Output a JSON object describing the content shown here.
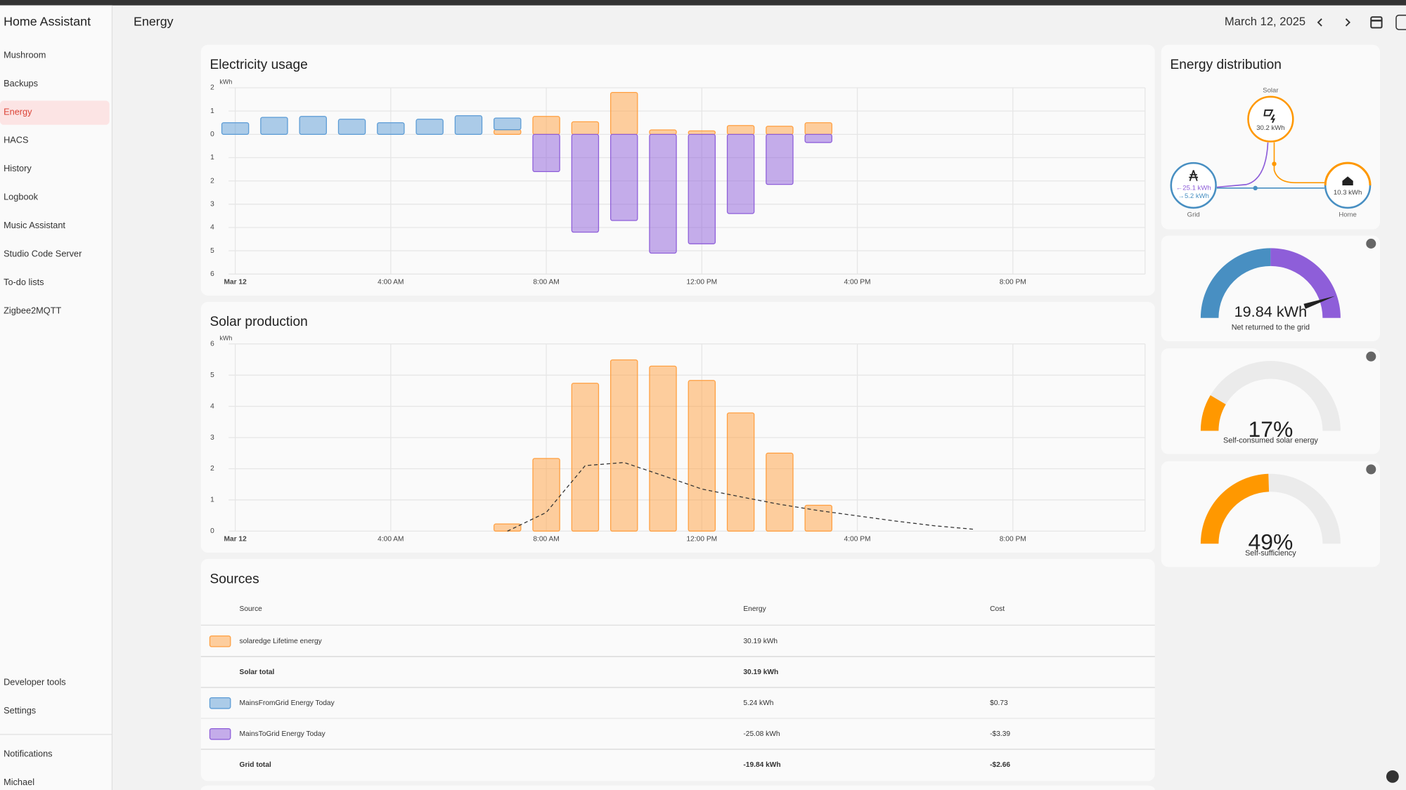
{
  "sidebar": {
    "title": "Home Assistant",
    "items": [
      "Mushroom",
      "Backups",
      "Energy",
      "HACS",
      "History",
      "Logbook",
      "Music Assistant",
      "Studio Code Server",
      "To-do lists",
      "Zigbee2MQTT"
    ],
    "bottom": [
      "Developer tools",
      "Settings"
    ],
    "footer": [
      "Notifications",
      "Michael"
    ]
  },
  "header": {
    "title": "Energy",
    "date": "March 12, 2025"
  },
  "electricity_usage": {
    "type": "bar",
    "title": "Electricity usage",
    "unit": "kWh",
    "x": [
      0,
      1,
      2,
      3,
      4,
      5,
      6,
      7,
      8,
      9,
      10,
      11,
      12,
      13,
      14,
      15
    ],
    "series": [
      {
        "color": "#ff9f40",
        "values": [
          null,
          null,
          null,
          null,
          null,
          null,
          null,
          0.2,
          0.77,
          0.54,
          1.8,
          0.19,
          0.15,
          0.38,
          0.35,
          0.5
        ]
      },
      {
        "color": "#5b9bd5",
        "values": [
          0.5,
          0.73,
          0.77,
          0.65,
          0.5,
          0.65,
          0.8,
          0.5,
          null,
          null,
          null,
          null,
          null,
          null,
          null,
          null
        ]
      },
      {
        "color": "#8e5ed9",
        "values": [
          null,
          null,
          null,
          null,
          null,
          null,
          null,
          null,
          -1.6,
          -4.2,
          -3.7,
          -5.1,
          -4.7,
          -3.4,
          -2.15,
          -0.35
        ]
      }
    ],
    "xlim": [
      -0.4,
      23.4
    ],
    "xticks": [
      {
        "value": 0,
        "label": "Mar 12"
      },
      {
        "value": 4,
        "label": "4:00 AM"
      },
      {
        "value": 8,
        "label": "8:00 AM"
      },
      {
        "value": 12,
        "label": "12:00 PM"
      },
      {
        "value": 16,
        "label": "4:00 PM"
      },
      {
        "value": 20,
        "label": "8:00 PM"
      }
    ],
    "ylim": [
      -6,
      2
    ],
    "yticks": [
      {
        "value": -6,
        "label": "6"
      },
      {
        "value": -5,
        "label": "5"
      },
      {
        "value": -4,
        "label": "4"
      },
      {
        "value": -3,
        "label": "3"
      },
      {
        "value": -2,
        "label": "2"
      },
      {
        "value": -1,
        "label": "1"
      },
      0,
      1,
      2
    ],
    "grid": true
  },
  "solar_production": {
    "type": "bar",
    "title": "Solar production",
    "unit": "kWh",
    "x": [
      7,
      8,
      9,
      10,
      11,
      12,
      13,
      14,
      15
    ],
    "series": [
      {
        "color": "#ff9f40",
        "values": [
          0.23,
          2.33,
          4.74,
          5.49,
          5.29,
          4.83,
          3.79,
          2.5,
          0.83
        ]
      }
    ],
    "forecast": {
      "color": "#333333",
      "x": [
        7,
        8,
        9,
        10,
        11,
        12,
        13,
        14,
        15,
        16,
        17,
        18,
        19
      ],
      "values": [
        0,
        0.6,
        2.1,
        2.2,
        1.78,
        1.35,
        1.1,
        0.86,
        0.66,
        0.49,
        0.32,
        0.17,
        0.06
      ]
    },
    "xlim": [
      -0.4,
      23.4
    ],
    "xticks": [
      {
        "value": 0,
        "label": "Mar 12"
      },
      {
        "value": 4,
        "label": "4:00 AM"
      },
      {
        "value": 8,
        "label": "8:00 AM"
      },
      {
        "value": 12,
        "label": "12:00 PM"
      },
      {
        "value": 16,
        "label": "4:00 PM"
      },
      {
        "value": 20,
        "label": "8:00 PM"
      }
    ],
    "ylim": [
      0,
      6
    ],
    "yticks": [
      0,
      1,
      2,
      3,
      4,
      5,
      6
    ],
    "grid": true
  },
  "distribution": {
    "title": "Energy distribution",
    "solar": {
      "label": "Solar",
      "value": "30.2 kWh"
    },
    "grid": {
      "label": "Grid",
      "to": {
        "value": 25.1,
        "label": "←25.1 kWh"
      },
      "from": {
        "value": 5.2,
        "label": "→5.2 kWh"
      }
    },
    "home": {
      "label": "Home",
      "value": "10.3 kWh"
    }
  },
  "gauges": [
    {
      "value": 19.84,
      "label": "19.84 kWh",
      "caption": "Net returned to the grid"
    },
    {
      "value": 17,
      "label": "17%",
      "caption": "Self-consumed solar energy",
      "color": "#ff9800"
    },
    {
      "value": 49,
      "label": "49%",
      "caption": "Self-sufficiency",
      "color": "#ff9800"
    }
  ],
  "sources": {
    "title": "Sources",
    "columns": [
      "Source",
      "Energy",
      "Cost"
    ],
    "rows": [
      {
        "color": "#ff9f40",
        "cells": [
          "solaredge Lifetime energy",
          "30.19 kWh",
          null
        ]
      },
      {
        "color": null,
        "total": true,
        "cells": [
          "Solar total",
          "30.19 kWh",
          null
        ]
      },
      {
        "color": "#5b9bd5",
        "cells": [
          "MainsFromGrid Energy Today",
          "5.24 kWh",
          "$0.73"
        ]
      },
      {
        "color": "#8e5ed9",
        "cells": [
          "MainsToGrid Energy Today",
          "-25.08 kWh",
          "-$3.39"
        ]
      },
      {
        "color": null,
        "total": true,
        "cells": [
          "Grid total",
          "-19.84 kWh",
          "-$2.66"
        ]
      }
    ]
  }
}
